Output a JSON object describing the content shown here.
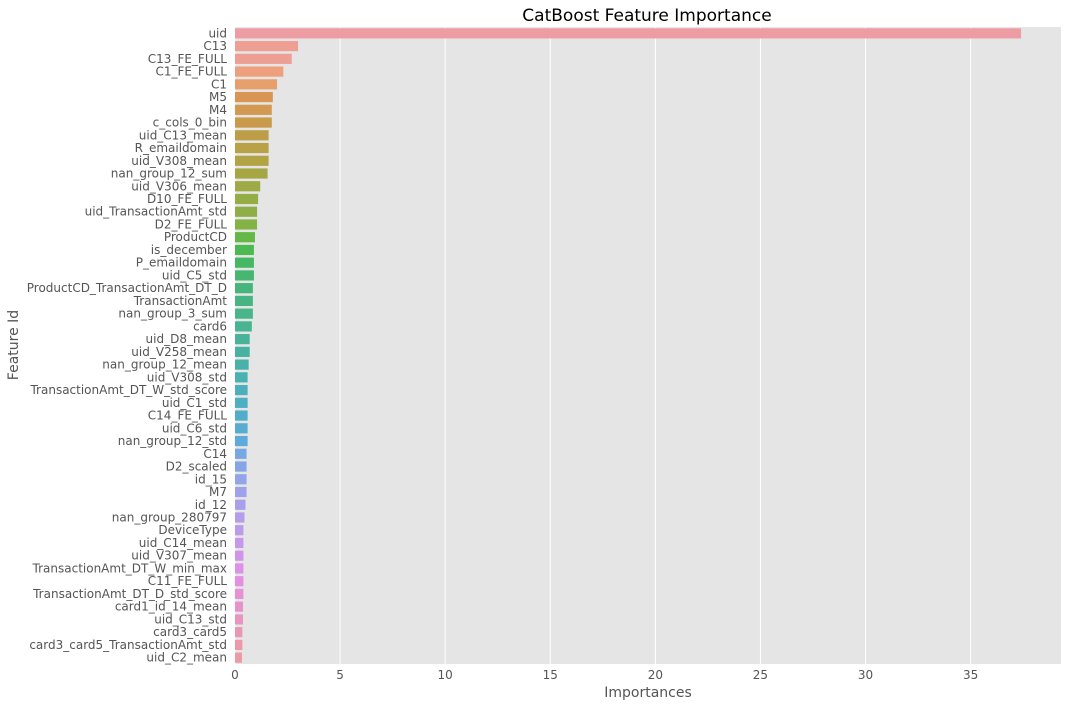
{
  "chart_data": {
    "type": "bar",
    "orientation": "horizontal",
    "title": "CatBoost Feature Importance",
    "xlabel": "Importances",
    "ylabel": "Feature Id",
    "xlim": [
      0,
      39.3
    ],
    "xticks": [
      "0",
      "5",
      "10",
      "15",
      "20",
      "25",
      "30",
      "35"
    ],
    "grid": true,
    "categories": [
      "uid",
      "C13",
      "C13_FE_FULL",
      "C1_FE_FULL",
      "C1",
      "M5",
      "M4",
      "c_cols_0_bin",
      "uid_C13_mean",
      "R_emaildomain",
      "uid_V308_mean",
      "nan_group_12_sum",
      "uid_V306_mean",
      "D10_FE_FULL",
      "uid_TransactionAmt_std",
      "D2_FE_FULL",
      "ProductCD",
      "is_december",
      "P_emaildomain",
      "uid_C5_std",
      "ProductCD_TransactionAmt_DT_D",
      "TransactionAmt",
      "nan_group_3_sum",
      "card6",
      "uid_D8_mean",
      "uid_V258_mean",
      "nan_group_12_mean",
      "uid_V308_std",
      "TransactionAmt_DT_W_std_score",
      "uid_C1_std",
      "C14_FE_FULL",
      "uid_C6_std",
      "nan_group_12_std",
      "C14",
      "D2_scaled",
      "id_15",
      "M7",
      "id_12",
      "nan_group_280797",
      "DeviceType",
      "uid_C14_mean",
      "uid_V307_mean",
      "TransactionAmt_DT_W_min_max",
      "C11_FE_FULL",
      "TransactionAmt_DT_D_std_score",
      "card1_id_14_mean",
      "uid_C13_std",
      "card3_card5",
      "card3_card5_TransactionAmt_std",
      "uid_C2_mean"
    ],
    "values": [
      37.4,
      3.0,
      2.7,
      2.3,
      2.0,
      1.8,
      1.75,
      1.75,
      1.6,
      1.6,
      1.6,
      1.55,
      1.2,
      1.1,
      1.05,
      1.05,
      0.95,
      0.9,
      0.9,
      0.9,
      0.85,
      0.85,
      0.85,
      0.8,
      0.7,
      0.7,
      0.65,
      0.6,
      0.6,
      0.6,
      0.6,
      0.6,
      0.6,
      0.55,
      0.55,
      0.55,
      0.55,
      0.5,
      0.45,
      0.4,
      0.4,
      0.4,
      0.4,
      0.4,
      0.4,
      0.38,
      0.38,
      0.35,
      0.35,
      0.33
    ],
    "colors": [
      "#ee9ca3",
      "#ee9f93",
      "#ee9f93",
      "#ed9f7e",
      "#e7a06c",
      "#d99553",
      "#d39851",
      "#c89a4a",
      "#bd9e48",
      "#b9a246",
      "#b2a445",
      "#a6a744",
      "#9eaa45",
      "#94ad44",
      "#8daf46",
      "#83b245",
      "#64b946",
      "#4dba51",
      "#46b863",
      "#46b770",
      "#45b57a",
      "#47b582",
      "#48b58a",
      "#48b492",
      "#48b39a",
      "#48b2a2",
      "#48b1aa",
      "#49b1b2",
      "#4bb0ba",
      "#4eafc2",
      "#52adca",
      "#58acd2",
      "#5faada",
      "#75a8e4",
      "#86a5e8",
      "#92a4ea",
      "#9da2eb",
      "#a8a0ec",
      "#b29eec",
      "#bb9aec",
      "#c797eb",
      "#d294eb",
      "#dd91e9",
      "#e48fe1",
      "#e790d6",
      "#e892cb",
      "#e995c0",
      "#ea97b4",
      "#eb99ab",
      "#ec9aa3"
    ]
  }
}
